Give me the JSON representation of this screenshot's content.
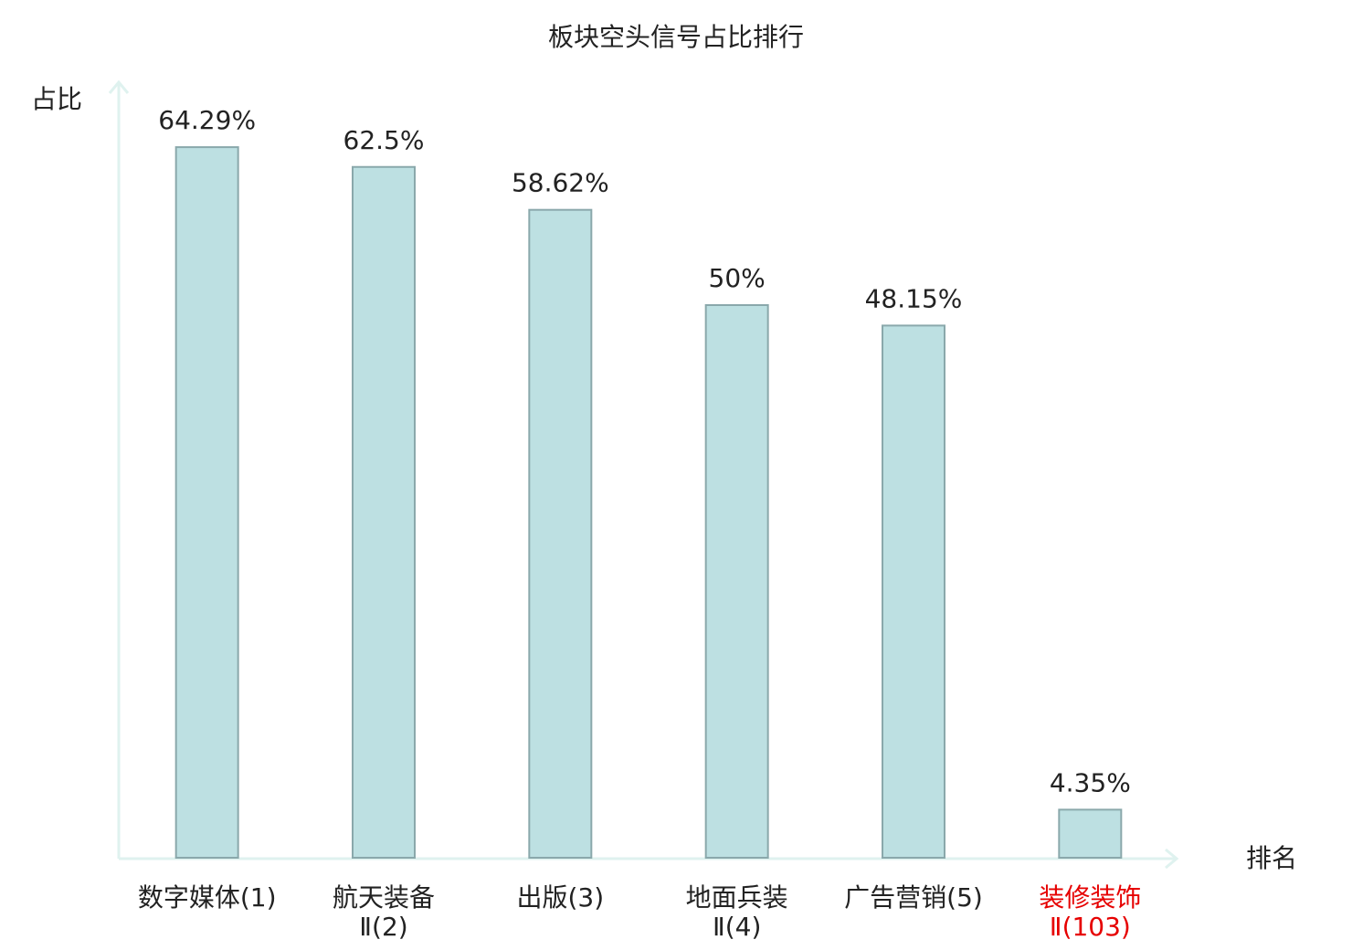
{
  "chart_data": {
    "type": "bar",
    "title": "板块空头信号占比排行",
    "y_label": "占比",
    "x_label": "排名",
    "categories": [
      [
        "数字媒体(1)"
      ],
      [
        "航天装备",
        "Ⅱ(2)"
      ],
      [
        "出版(3)"
      ],
      [
        "地面兵装",
        "Ⅱ(4)"
      ],
      [
        "广告营销(5)"
      ],
      [
        "装修装饰",
        "Ⅱ(103)"
      ]
    ],
    "label_colors": [
      "#222222",
      "#222222",
      "#222222",
      "#222222",
      "#222222",
      "#e60000"
    ],
    "values": [
      64.29,
      62.5,
      58.62,
      50,
      48.15,
      4.35
    ],
    "value_labels": [
      "64.29%",
      "62.5%",
      "58.62%",
      "50%",
      "48.15%",
      "4.35%"
    ],
    "color": "#bde0e2",
    "edge_color": "#8aa8ab",
    "ylim": [
      0,
      70
    ]
  }
}
